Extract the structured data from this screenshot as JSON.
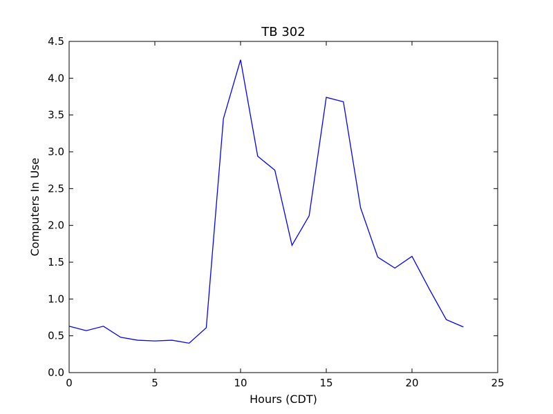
{
  "chart_data": {
    "type": "line",
    "title": "TB 302",
    "xlabel": "Hours (CDT)",
    "ylabel": "Computers In Use",
    "xlim": [
      0,
      25
    ],
    "ylim": [
      0,
      4.5
    ],
    "xticks": [
      0,
      5,
      10,
      15,
      20,
      25
    ],
    "yticks": [
      0.0,
      0.5,
      1.0,
      1.5,
      2.0,
      2.5,
      3.0,
      3.5,
      4.0,
      4.5
    ],
    "ytick_labels": [
      "0.0",
      "0.5",
      "1.0",
      "1.5",
      "2.0",
      "2.5",
      "3.0",
      "3.5",
      "4.0",
      "4.5"
    ],
    "xtick_labels": [
      "0",
      "5",
      "10",
      "15",
      "20",
      "25"
    ],
    "grid": false,
    "series": [
      {
        "color": "#0000ff",
        "x": [
          0,
          1,
          2,
          3,
          4,
          5,
          6,
          7,
          8,
          9,
          10,
          11,
          12,
          13,
          14,
          15,
          16,
          17,
          18,
          19,
          20,
          21,
          22,
          23
        ],
        "y": [
          0.63,
          0.57,
          0.63,
          0.48,
          0.44,
          0.43,
          0.44,
          0.4,
          0.61,
          3.45,
          4.25,
          2.94,
          2.75,
          1.73,
          2.13,
          3.74,
          3.68,
          2.24,
          1.57,
          1.42,
          1.58,
          1.14,
          0.72,
          0.62
        ]
      }
    ]
  }
}
